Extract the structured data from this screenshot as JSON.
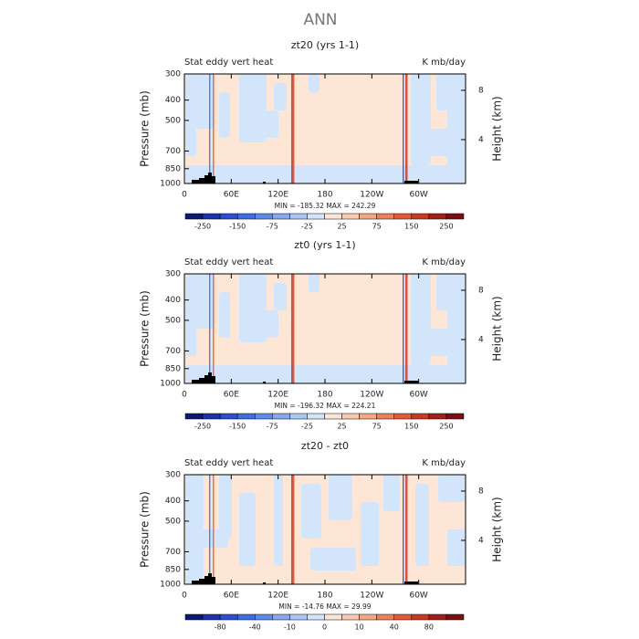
{
  "title": "ANN",
  "chart_data": [
    {
      "type": "contour",
      "title": "zt20 (yrs 1-1)",
      "left_label": "Stat eddy vert heat",
      "right_label": "K mb/day",
      "ylabel": "Pressure (mb)",
      "y2label": "Height (km)",
      "xlim": [
        0,
        360
      ],
      "xticks": [
        0,
        {
          "value": 60,
          "label": "60E"
        },
        {
          "value": 120,
          "label": "120E"
        },
        180,
        {
          "value": 240,
          "label": "120W"
        },
        {
          "value": 300,
          "label": "60W"
        }
      ],
      "ylim": [
        1000,
        300
      ],
      "yticks": [
        300,
        400,
        500,
        700,
        850,
        1000
      ],
      "log_y": true,
      "y2lim": [
        0.44,
        9.33
      ],
      "y2ticks": [
        4,
        8
      ],
      "stats": "MIN = -185.32   MAX = 242.29",
      "colorbar": {
        "colors": [
          "#0b1a6e",
          "#1a33a8",
          "#2b4fd0",
          "#3e6ee0",
          "#5e8be8",
          "#86a8ef",
          "#abc6f5",
          "#d3e5fb",
          "#fde6d5",
          "#f9caaf",
          "#f4a784",
          "#ec805b",
          "#e05a3a",
          "#c83a24",
          "#a3201a",
          "#7a0f12"
        ],
        "labels": [
          -250,
          -150,
          -75,
          -25,
          25,
          75,
          150,
          250
        ]
      }
    },
    {
      "type": "contour",
      "title": "zt0 (yrs 1-1)",
      "left_label": "Stat eddy vert heat",
      "right_label": "K mb/day",
      "ylabel": "Pressure (mb)",
      "y2label": "Height (km)",
      "xlim": [
        0,
        360
      ],
      "xticks": [
        0,
        {
          "value": 60,
          "label": "60E"
        },
        {
          "value": 120,
          "label": "120E"
        },
        180,
        {
          "value": 240,
          "label": "120W"
        },
        {
          "value": 300,
          "label": "60W"
        }
      ],
      "ylim": [
        1000,
        300
      ],
      "yticks": [
        300,
        400,
        500,
        700,
        850,
        1000
      ],
      "log_y": true,
      "y2lim": [
        0.44,
        9.33
      ],
      "y2ticks": [
        4,
        8
      ],
      "stats": "MIN = -196.32   MAX = 224.21",
      "colorbar": {
        "colors": [
          "#0b1a6e",
          "#1a33a8",
          "#2b4fd0",
          "#3e6ee0",
          "#5e8be8",
          "#86a8ef",
          "#abc6f5",
          "#d3e5fb",
          "#fde6d5",
          "#f9caaf",
          "#f4a784",
          "#ec805b",
          "#e05a3a",
          "#c83a24",
          "#a3201a",
          "#7a0f12"
        ],
        "labels": [
          -250,
          -150,
          -75,
          -25,
          25,
          75,
          150,
          250
        ]
      }
    },
    {
      "type": "contour",
      "title": "zt20 - zt0",
      "left_label": "Stat eddy vert heat",
      "right_label": "K mb/day",
      "ylabel": "Pressure (mb)",
      "y2label": "Height (km)",
      "xlim": [
        0,
        360
      ],
      "xticks": [
        0,
        {
          "value": 60,
          "label": "60E"
        },
        {
          "value": 120,
          "label": "120E"
        },
        180,
        {
          "value": 240,
          "label": "120W"
        },
        {
          "value": 300,
          "label": "60W"
        }
      ],
      "ylim": [
        1000,
        300
      ],
      "yticks": [
        300,
        400,
        500,
        700,
        850,
        1000
      ],
      "log_y": true,
      "y2lim": [
        0.44,
        9.33
      ],
      "y2ticks": [
        4,
        8
      ],
      "stats": "MIN = -14.76   MAX =  29.99",
      "colorbar": {
        "colors": [
          "#0b1a6e",
          "#1a33a8",
          "#2b4fd0",
          "#3e6ee0",
          "#5e8be8",
          "#86a8ef",
          "#abc6f5",
          "#d3e5fb",
          "#fde6d5",
          "#f9caaf",
          "#f4a784",
          "#ec805b",
          "#e05a3a",
          "#c83a24",
          "#a3201a",
          "#7a0f12"
        ],
        "labels": [
          -80,
          -40,
          -10,
          0,
          10,
          40,
          80
        ]
      }
    }
  ]
}
